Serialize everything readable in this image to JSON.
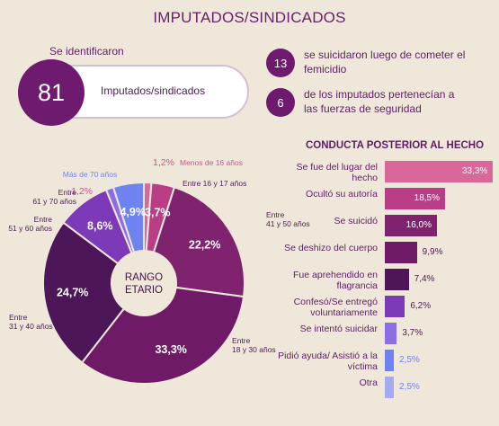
{
  "header": {
    "title": "IMPUTADOS/SINDICADOS"
  },
  "identified": {
    "label": "Se identificaron",
    "number": "81",
    "text": "Imputados/sindicados"
  },
  "stats": [
    {
      "number": "13",
      "text": "se suicidaron luego de cometer el femicidio"
    },
    {
      "number": "6",
      "text": "de los imputados pertenecían a las fuerzas de seguridad"
    }
  ],
  "chart_data": [
    {
      "type": "pie",
      "title": "RANGO ETARIO",
      "categories": [
        "Menos de 16 años",
        "Entre 16 y 17 años",
        "Entre 41 y 50 años",
        "Entre 18 y 30 años",
        "Entre 31 y 40 años",
        "Entre 51 y 60 años",
        "Entre 61 y 70 años",
        "Más de 70 años"
      ],
      "values": [
        1.2,
        3.7,
        22.2,
        33.3,
        24.7,
        8.6,
        1.2,
        4.9
      ],
      "value_labels": [
        "1,2%",
        "3,7%",
        "22,2%",
        "33,3%",
        "24,7%",
        "8,6%",
        "1,2%",
        "4,9%"
      ],
      "colors": [
        "#d9679a",
        "#b93e86",
        "#80236e",
        "#6e1a67",
        "#4d1658",
        "#7c39b8",
        "#8a6fe4",
        "#6f83f0"
      ]
    },
    {
      "type": "bar",
      "title": "CONDUCTA POSTERIOR AL HECHO",
      "categories": [
        "Se fue del lugar del hecho",
        "Ocultó su autoría",
        "Se suicidó",
        "Se deshizo del cuerpo",
        "Fue aprehendido en flagrancia",
        "Confesó/Se entregó voluntariamente",
        "Se intentó suicidar",
        "Pidió ayuda/ Asistió a la víctima",
        "Otra"
      ],
      "values": [
        33.3,
        18.5,
        16.0,
        9.9,
        7.4,
        6.2,
        3.7,
        2.5,
        2.5
      ],
      "value_labels": [
        "33,3%",
        "18,5%",
        "16,0%",
        "9,9%",
        "7,4%",
        "6,2%",
        "3,7%",
        "2,5%",
        "2,5%"
      ],
      "colors": [
        "#d9679a",
        "#b93e86",
        "#80236e",
        "#6e1a67",
        "#4d1658",
        "#7c39b8",
        "#8a6fe4",
        "#6f83f0",
        "#a6aaf2"
      ]
    }
  ]
}
